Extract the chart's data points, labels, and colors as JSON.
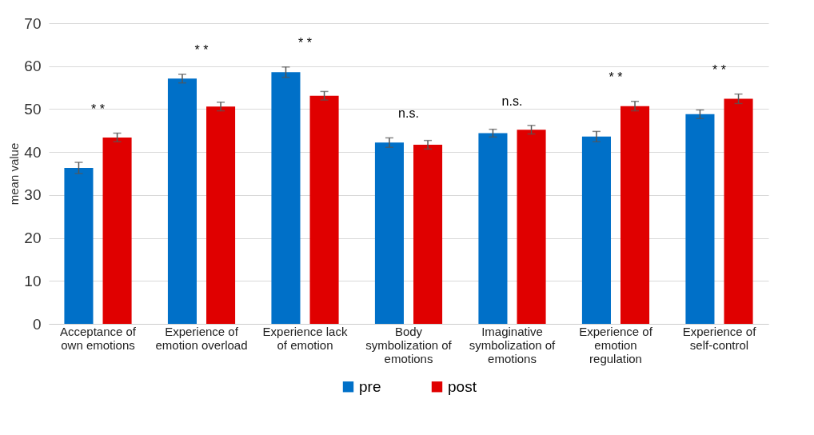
{
  "chart_data": {
    "type": "bar",
    "ylabel": "mean value",
    "categories": [
      "Acceptance of own emotions",
      "Experience of emotion overload",
      "Experience lack of emotion",
      "Body symbolization of emotions",
      "Imaginative symbolization of emotions",
      "Experience of emotion regulation",
      "Experience of self-control"
    ],
    "series": [
      {
        "name": "pre",
        "color": "#0070c8",
        "values": [
          36.3,
          57.1,
          58.6,
          42.2,
          44.4,
          43.6,
          48.8
        ],
        "errors": [
          1.3,
          1.0,
          1.2,
          1.1,
          0.9,
          1.2,
          1.0
        ]
      },
      {
        "name": "post",
        "color": "#e00000",
        "values": [
          43.4,
          50.6,
          53.1,
          41.7,
          45.2,
          50.7,
          52.4
        ],
        "errors": [
          1.0,
          1.0,
          1.0,
          1.0,
          1.0,
          1.1,
          1.1
        ]
      }
    ],
    "ylim": [
      0,
      70
    ],
    "yticks": [
      0,
      10,
      20,
      30,
      40,
      50,
      60,
      70
    ],
    "grid": "y",
    "legend": "bottom",
    "annotations": [
      "* *",
      "* *",
      "* *",
      "n.s.",
      "n.s.",
      "* *",
      "* *"
    ]
  }
}
